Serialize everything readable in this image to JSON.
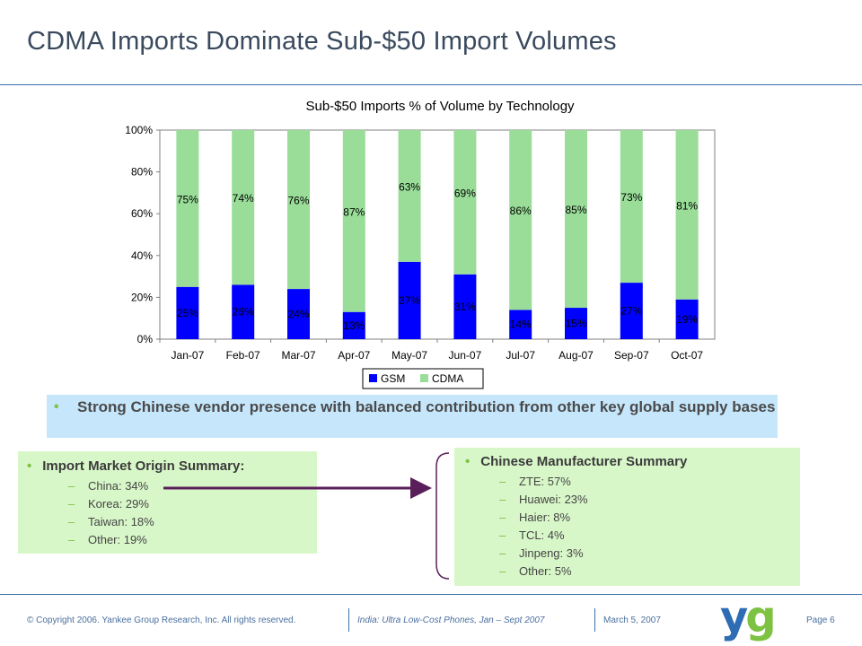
{
  "slide": {
    "title": "CDMA Imports Dominate Sub-$50 Import Volumes",
    "callout": "Strong Chinese vendor presence with balanced contribution from other key global supply bases",
    "origin_summary": {
      "heading": "Import Market Origin Summary:",
      "items": [
        "China: 34%",
        "Korea: 29%",
        "Taiwan: 18%",
        "Other: 19%"
      ]
    },
    "manufacturer_summary": {
      "heading": "Chinese Manufacturer Summary",
      "items": [
        "ZTE: 57%",
        "Huawei: 23%",
        "Haier: 8%",
        "TCL: 4%",
        "Jinpeng: 3%",
        "Other: 5%"
      ]
    },
    "footer": {
      "copyright": "© Copyright 2006. Yankee Group Research, Inc. All rights reserved.",
      "report": "India: Ultra Low-Cost Phones, Jan – Sept 2007",
      "date": "March 5, 2007",
      "page": "Page 6",
      "logo_text": "yg"
    },
    "colors": {
      "accent_green": "#7dc242",
      "rule_blue": "#3a6fa8",
      "connector": "#5a1f5a"
    }
  },
  "chart_data": {
    "type": "bar",
    "stacked": true,
    "title": "Sub-$50 Imports % of Volume by Technology",
    "categories": [
      "Jan-07",
      "Feb-07",
      "Mar-07",
      "Apr-07",
      "May-07",
      "Jun-07",
      "Jul-07",
      "Aug-07",
      "Sep-07",
      "Oct-07"
    ],
    "series": [
      {
        "name": "GSM",
        "color": "#0000ff",
        "values": [
          25,
          26,
          24,
          13,
          37,
          31,
          14,
          15,
          27,
          19
        ],
        "labels": [
          "25%",
          "26%",
          "24%",
          "13%",
          "37%",
          "31%",
          "14%",
          "15%",
          "27%",
          "19%"
        ]
      },
      {
        "name": "CDMA",
        "color": "#99dd99",
        "values": [
          75,
          74,
          76,
          87,
          63,
          69,
          86,
          85,
          73,
          81
        ],
        "labels": [
          "75%",
          "74%",
          "76%",
          "87%",
          "63%",
          "69%",
          "86%",
          "85%",
          "73%",
          "81%"
        ]
      }
    ],
    "ylim": [
      0,
      100
    ],
    "yticks": [
      "0%",
      "20%",
      "40%",
      "60%",
      "80%",
      "100%"
    ],
    "grid": false,
    "legend": "bottom"
  }
}
